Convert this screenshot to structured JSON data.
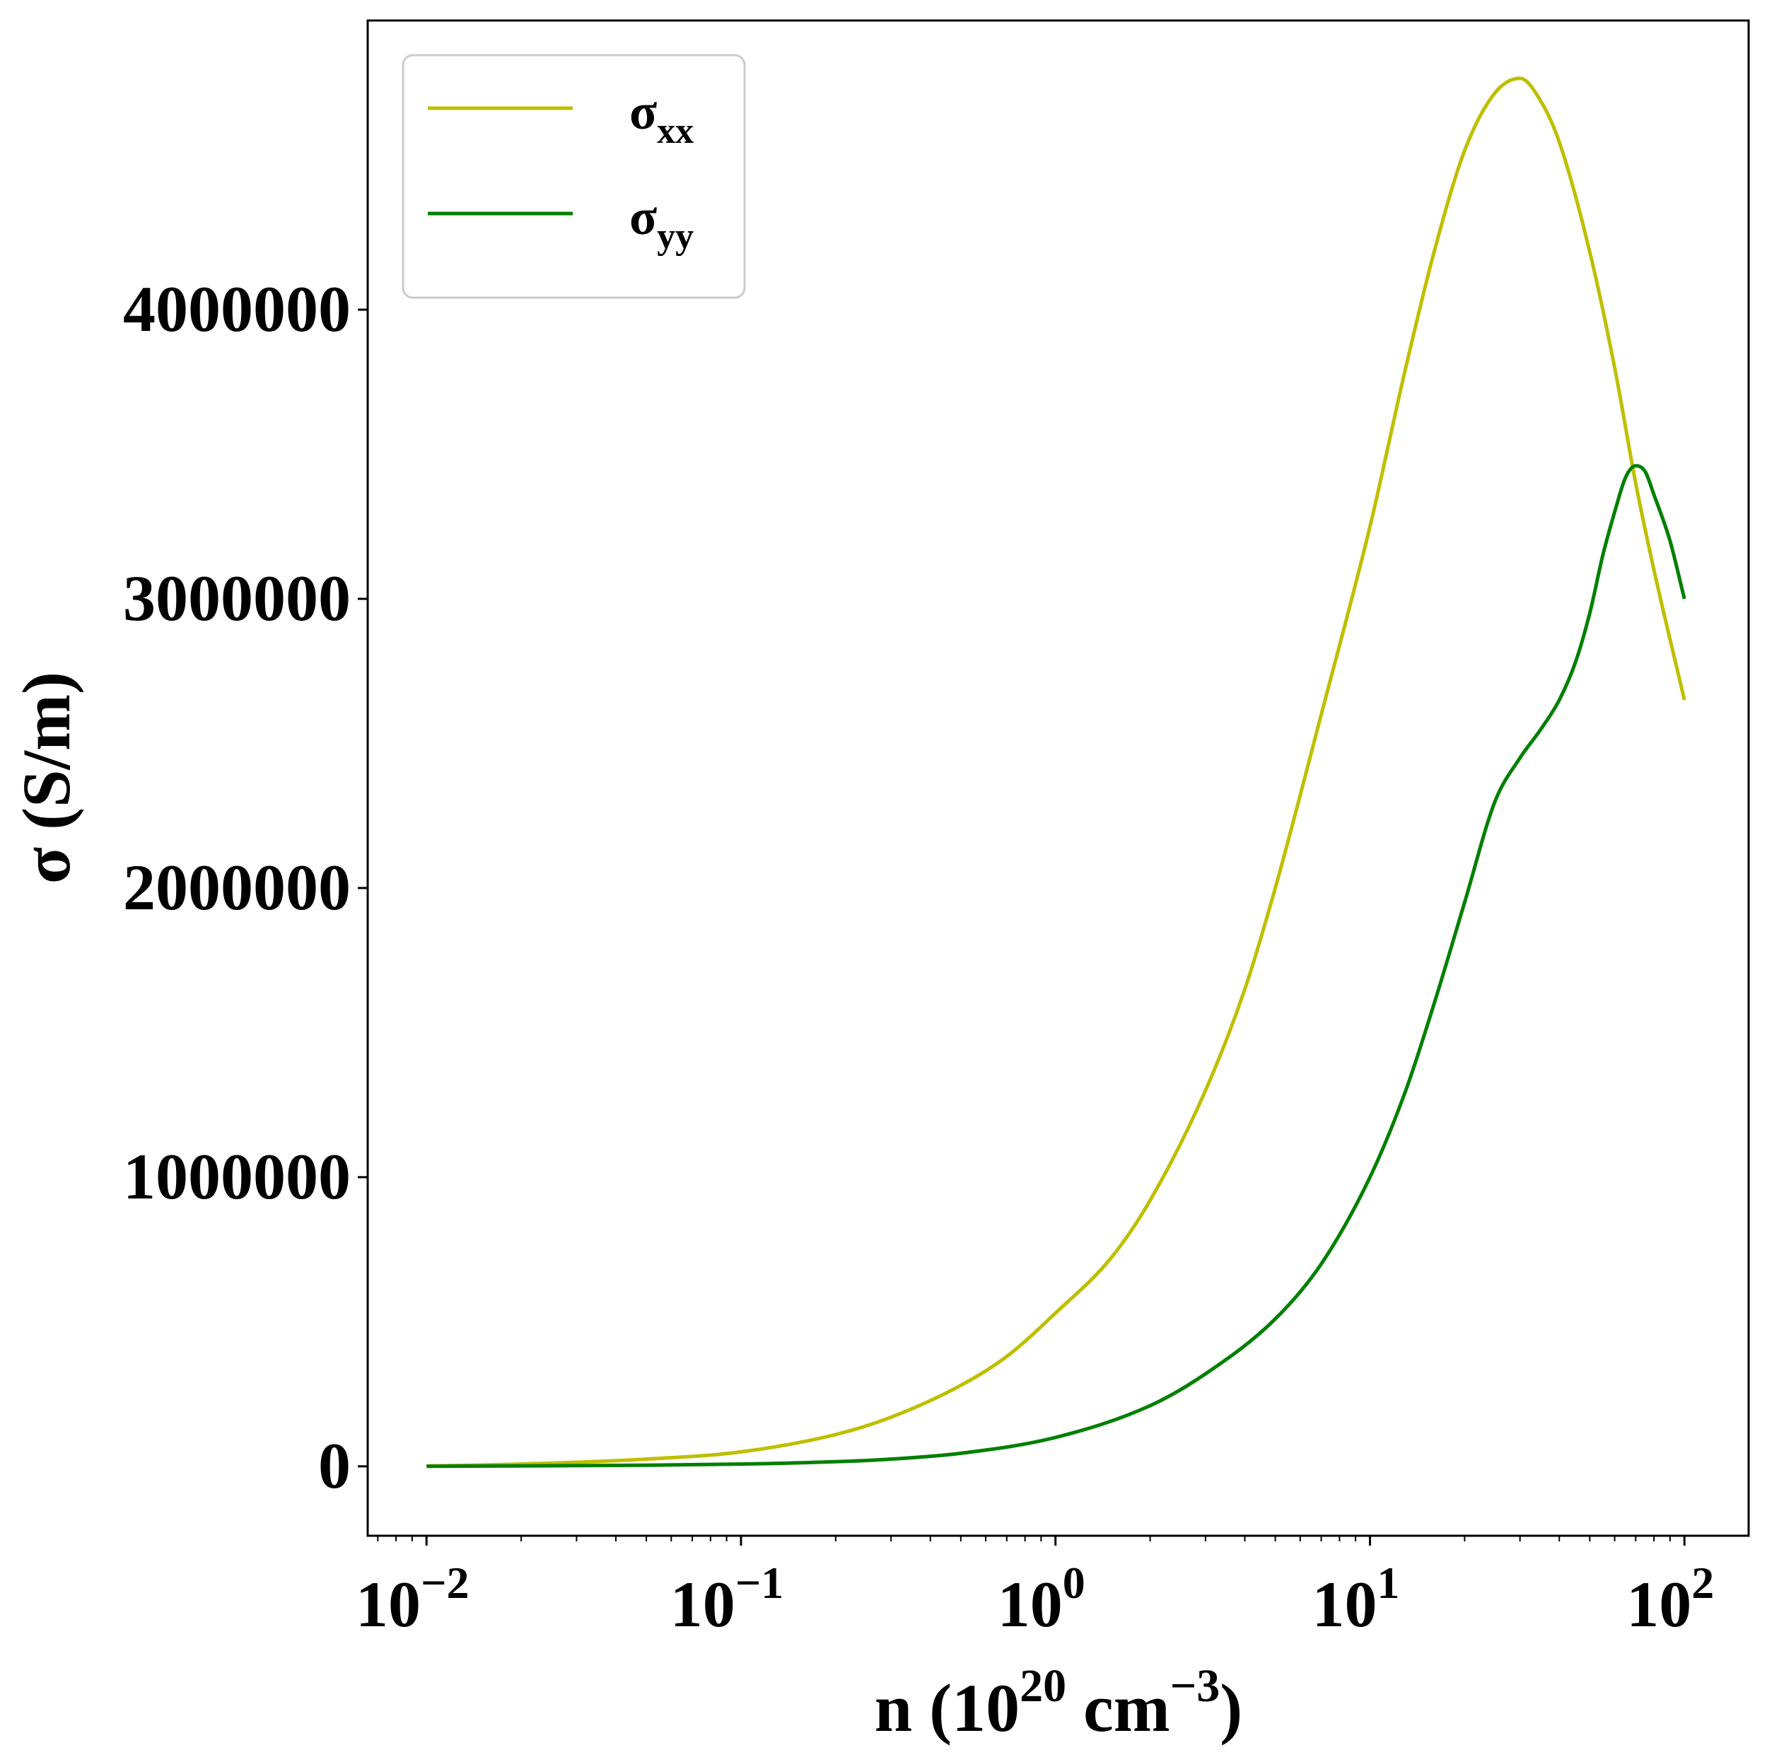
{
  "chart_data": {
    "type": "line",
    "xscale": "log",
    "xlim": [
      0.0065,
      160
    ],
    "ylim": [
      -240000,
      5000000
    ],
    "xlabel": {
      "base": "n (10",
      "exp1": "20",
      "mid": " cm",
      "exp2": "−3",
      "end": ")"
    },
    "ylabel": "σ (S/m)",
    "x_ticks": [
      {
        "value": 0.01,
        "base": "10",
        "exp": "−2"
      },
      {
        "value": 0.1,
        "base": "10",
        "exp": "−1"
      },
      {
        "value": 1,
        "base": "10",
        "exp": "0"
      },
      {
        "value": 10,
        "base": "10",
        "exp": "1"
      },
      {
        "value": 100,
        "base": "10",
        "exp": "2"
      }
    ],
    "y_ticks": [
      {
        "value": 0,
        "label": "0"
      },
      {
        "value": 1000000,
        "label": "1000000"
      },
      {
        "value": 2000000,
        "label": "2000000"
      },
      {
        "value": 3000000,
        "label": "3000000"
      },
      {
        "value": 4000000,
        "label": "4000000"
      }
    ],
    "legend": {
      "placement": "upper-left",
      "entries": [
        {
          "symbol": "σ",
          "sub": "xx"
        },
        {
          "symbol": "σ",
          "sub": "yy"
        }
      ]
    },
    "grid": false,
    "series": [
      {
        "name": "σxx",
        "color": "#bfbf00",
        "x": [
          0.01,
          0.02,
          0.05,
          0.1,
          0.2,
          0.3,
          0.5,
          0.7,
          1,
          1.5,
          2,
          3,
          4,
          5,
          7,
          10,
          13,
          16,
          20,
          25,
          30,
          35,
          40,
          50,
          60,
          70,
          80,
          100
        ],
        "y": [
          1000,
          8000,
          25000,
          50000,
          110000,
          170000,
          280000,
          380000,
          530000,
          720000,
          920000,
          1300000,
          1650000,
          2000000,
          2600000,
          3250000,
          3800000,
          4200000,
          4550000,
          4750000,
          4800000,
          4720000,
          4580000,
          4200000,
          3800000,
          3400000,
          3100000,
          2650000
        ]
      },
      {
        "name": "σyy",
        "color": "#008000",
        "x": [
          0.01,
          0.05,
          0.1,
          0.2,
          0.3,
          0.5,
          1,
          2,
          3,
          5,
          7,
          10,
          13,
          16,
          20,
          25,
          30,
          35,
          40,
          45,
          50,
          55,
          60,
          65,
          70,
          75,
          80,
          90,
          100
        ],
        "y": [
          0,
          4000,
          8000,
          16000,
          25000,
          45000,
          100000,
          210000,
          320000,
          510000,
          700000,
          1000000,
          1300000,
          1600000,
          1950000,
          2300000,
          2450000,
          2550000,
          2650000,
          2780000,
          2950000,
          3150000,
          3300000,
          3420000,
          3460000,
          3440000,
          3360000,
          3200000,
          3000000
        ]
      }
    ]
  }
}
